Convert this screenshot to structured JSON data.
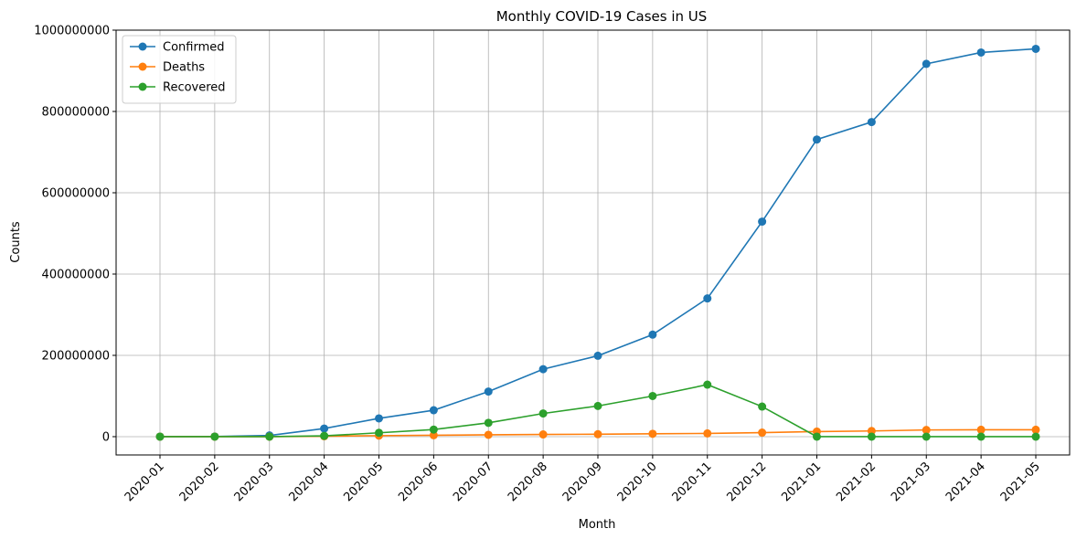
{
  "chart_data": {
    "type": "line",
    "title": "Monthly COVID-19 Cases in US",
    "xlabel": "Month",
    "ylabel": "Counts",
    "categories": [
      "2020-01",
      "2020-02",
      "2020-03",
      "2020-04",
      "2020-05",
      "2020-06",
      "2020-07",
      "2020-08",
      "2020-09",
      "2020-10",
      "2020-11",
      "2020-12",
      "2021-01",
      "2021-02",
      "2021-03",
      "2021-04",
      "2021-05"
    ],
    "ylim": [
      -45000000,
      1000000000
    ],
    "yticks": [
      0,
      200000000,
      400000000,
      600000000,
      800000000,
      1000000000
    ],
    "ytick_labels": [
      "0",
      "200000000",
      "400000000",
      "600000000",
      "800000000",
      "1000000000"
    ],
    "grid": true,
    "legend_position": "top-left",
    "series": [
      {
        "name": "Confirmed",
        "color": "#1f77b4",
        "values": [
          0,
          300000,
          3000000,
          20000000,
          45000000,
          65000000,
          111000000,
          166000000,
          199000000,
          251000000,
          340000000,
          529000000,
          731000000,
          774000000,
          917000000,
          945000000,
          954000000
        ]
      },
      {
        "name": "Deaths",
        "color": "#ff7f0e",
        "values": [
          0,
          0,
          50000,
          1000000,
          2500000,
          3500000,
          4500000,
          5500000,
          6000000,
          7000000,
          8000000,
          10000000,
          12500000,
          14000000,
          16500000,
          17000000,
          17000000
        ]
      },
      {
        "name": "Recovered",
        "color": "#2ca02c",
        "values": [
          0,
          0,
          50000,
          2000000,
          9500000,
          17500000,
          34000000,
          57000000,
          75500000,
          100000000,
          128000000,
          74000000,
          0,
          0,
          0,
          0,
          0
        ]
      }
    ]
  }
}
